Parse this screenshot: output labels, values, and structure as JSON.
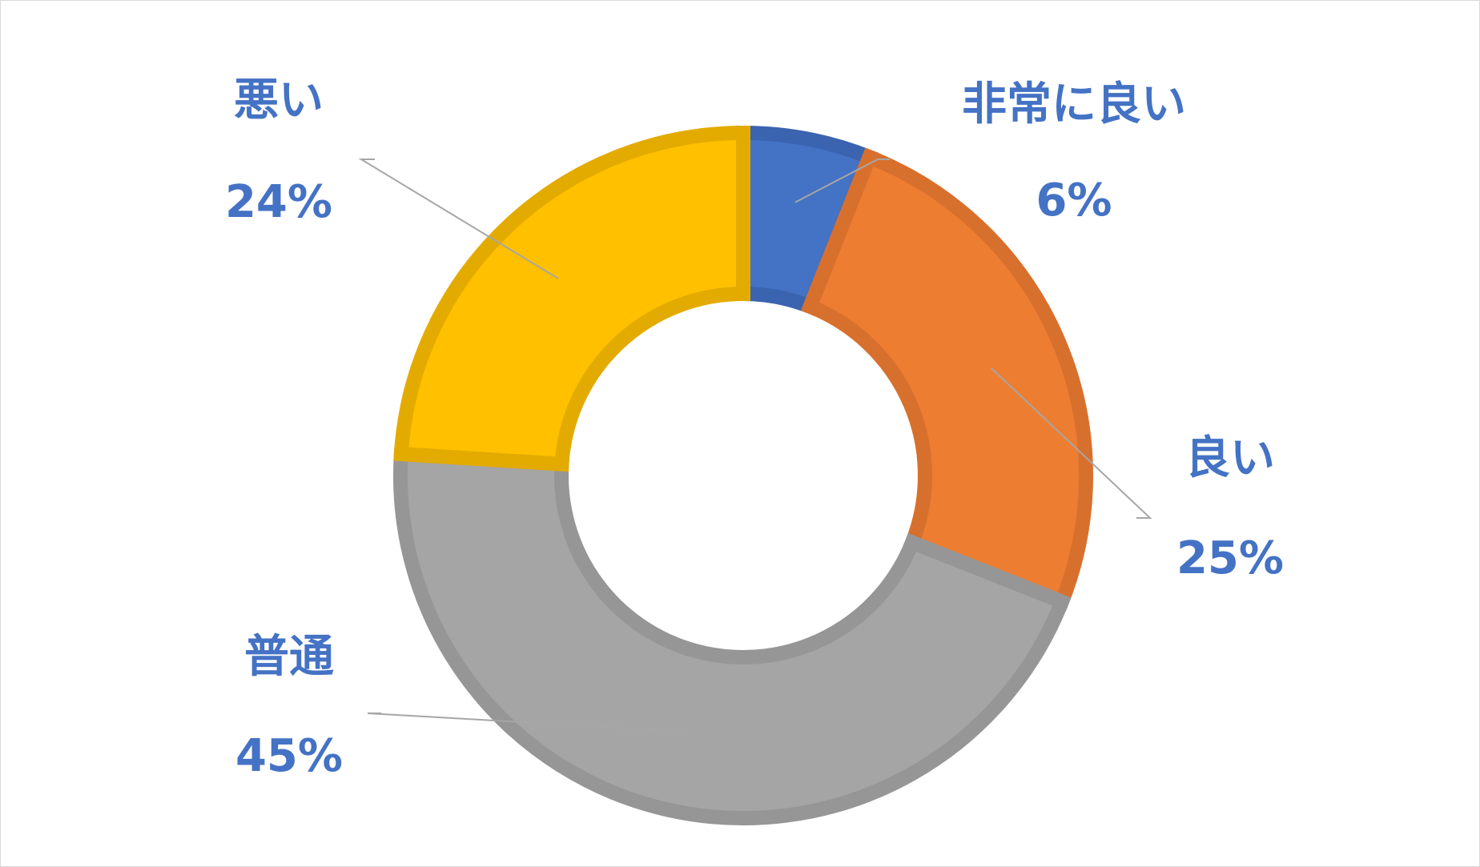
{
  "chart_data": {
    "type": "doughnut",
    "title": "",
    "legend": "none",
    "data_labels": "category-and-percent",
    "label_color": "#4472c4",
    "leader_line_color": "#a6a6a6",
    "slices": [
      {
        "category": "非常に良い",
        "value": 6,
        "label": "6%",
        "fill": "#4472c4",
        "stroke": "#3a63b0"
      },
      {
        "category": "良い",
        "value": 25,
        "label": "25%",
        "fill": "#ed7d31",
        "stroke": "#d8702d"
      },
      {
        "category": "普通",
        "value": 45,
        "label": "45%",
        "fill": "#a5a5a5",
        "stroke": "#969696"
      },
      {
        "category": "悪い",
        "value": 24,
        "label": "24%",
        "fill": "#ffc000",
        "stroke": "#e3ab00"
      }
    ]
  }
}
